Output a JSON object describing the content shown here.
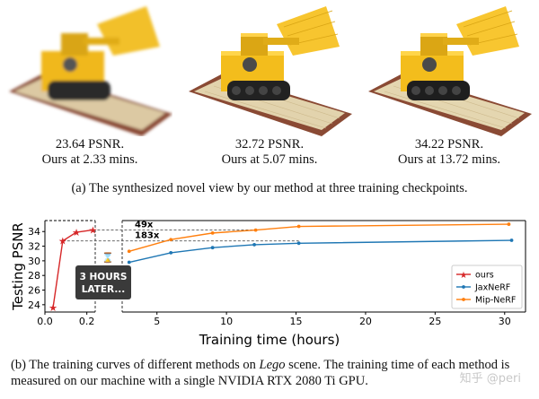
{
  "renders": [
    {
      "psnr": "23.64 PSNR.",
      "time": "Ours at 2.33 mins.",
      "quality": "blurry"
    },
    {
      "psnr": "32.72 PSNR.",
      "time": "Ours at 5.07 mins.",
      "quality": "sharp"
    },
    {
      "psnr": "34.22 PSNR.",
      "time": "Ours at 13.72 mins.",
      "quality": "sharp"
    }
  ],
  "caption_a": "(a) The synthesized novel view by our method at three training checkpoints.",
  "caption_b": {
    "part1": "(b) The training curves of different methods on ",
    "scene": "Lego",
    "part2": " scene. The training time of each method is measured on our machine with a single NVIDIA RTX 2080 Ti GPU."
  },
  "watermark": "知乎 @peri",
  "chart_data": {
    "type": "line",
    "xlabel": "Training time (hours)",
    "ylabel": "Testing PSNR",
    "left_xlim": [
      0,
      0.24
    ],
    "left_xticks": [
      "0.0",
      "0.2"
    ],
    "right_xlim": [
      2.5,
      31.5
    ],
    "right_xticks": [
      "5",
      "10",
      "15",
      "20",
      "25",
      "30"
    ],
    "ylim": [
      23,
      35.5
    ],
    "yticks": [
      "24",
      "26",
      "28",
      "30",
      "32",
      "34"
    ],
    "break_label": "3 HOURS\nLATER...",
    "annotations": [
      {
        "text": "49x",
        "y": 34.22
      },
      {
        "text": "183x",
        "y": 32.72
      }
    ],
    "legend_position": "lower-right",
    "series": [
      {
        "name": "ours",
        "color": "#d62728",
        "marker": "star",
        "axis": "left",
        "x": [
          0.039,
          0.085,
          0.15,
          0.229
        ],
        "y": [
          23.64,
          32.72,
          33.9,
          34.22
        ]
      },
      {
        "name": "JaxNeRF",
        "color": "#1f77b4",
        "marker": "dot",
        "axis": "right",
        "x": [
          3,
          6,
          9,
          12,
          15.2,
          30.5
        ],
        "y": [
          29.8,
          31.1,
          31.8,
          32.2,
          32.4,
          32.8
        ]
      },
      {
        "name": "Mip-NeRF",
        "color": "#ff7f0e",
        "marker": "dot",
        "axis": "right",
        "x": [
          3,
          6,
          9,
          12.1,
          15.2,
          30.3
        ],
        "y": [
          31.3,
          32.9,
          33.8,
          34.2,
          34.7,
          35.0
        ]
      }
    ]
  }
}
